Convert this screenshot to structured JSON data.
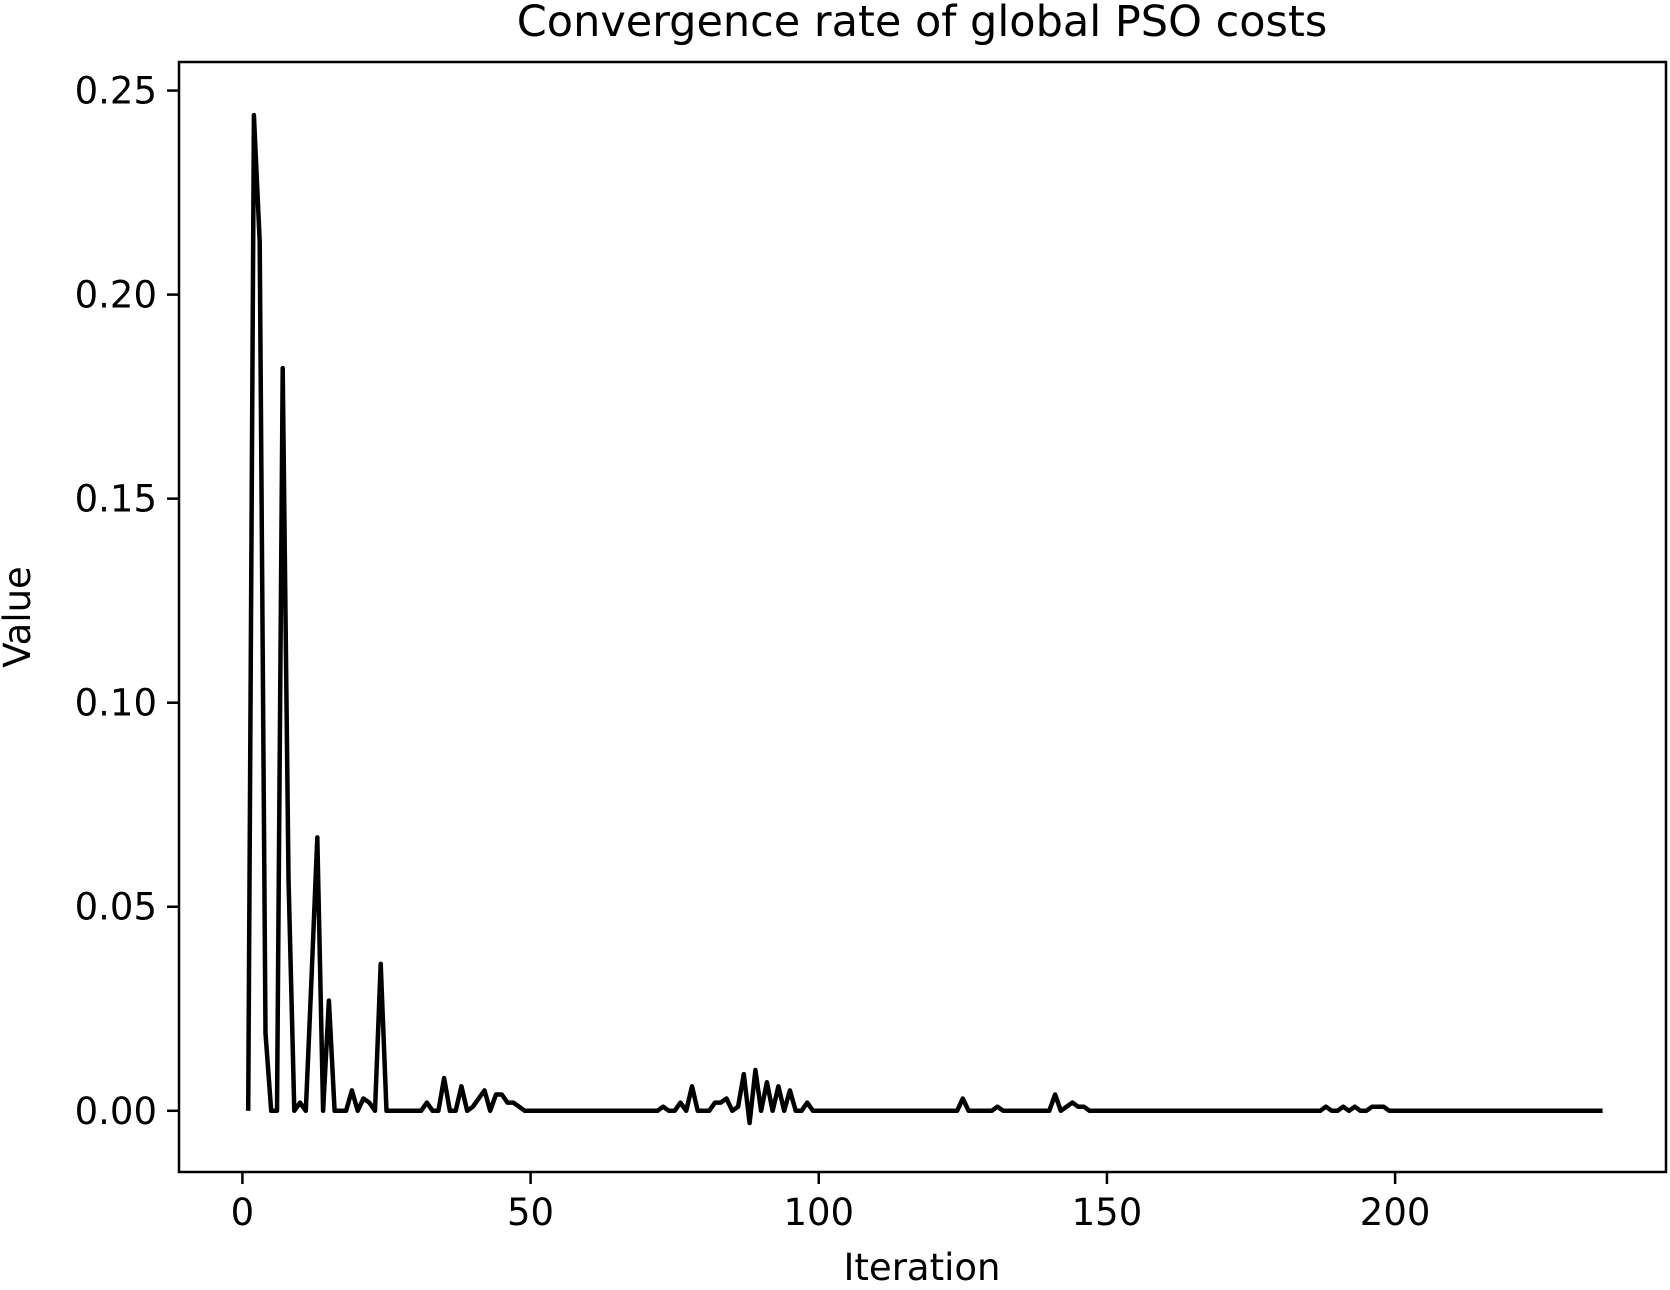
{
  "chart_data": {
    "type": "line",
    "title": "Convergence rate of global PSO costs",
    "xlabel": "Iteration",
    "ylabel": "Value",
    "xlim": [
      -11,
      247
    ],
    "ylim": [
      -0.015,
      0.257
    ],
    "xticks": [
      0,
      50,
      100,
      150,
      200
    ],
    "xtick_labels": [
      "0",
      "50",
      "100",
      "150",
      "200"
    ],
    "yticks": [
      0.0,
      0.05,
      0.1,
      0.15,
      0.2,
      0.25
    ],
    "ytick_labels": [
      "0.00",
      "0.05",
      "0.10",
      "0.15",
      "0.20",
      "0.25"
    ],
    "grid": false,
    "line_color": "#000000",
    "series": [
      {
        "x": [
          1,
          2,
          3,
          4,
          5,
          6,
          7,
          8,
          9,
          10,
          11,
          12,
          13,
          14,
          15,
          16,
          17,
          18,
          19,
          20,
          21,
          22,
          23,
          24,
          25,
          26,
          27,
          28,
          29,
          30,
          31,
          32,
          33,
          34,
          35,
          36,
          37,
          38,
          39,
          40,
          41,
          42,
          43,
          44,
          45,
          46,
          47,
          48,
          49,
          50,
          55,
          60,
          65,
          70,
          72,
          73,
          74,
          75,
          76,
          77,
          78,
          79,
          80,
          81,
          82,
          83,
          84,
          85,
          86,
          87,
          88,
          89,
          90,
          91,
          92,
          93,
          94,
          95,
          96,
          97,
          98,
          99,
          100,
          110,
          120,
          124,
          125,
          126,
          130,
          131,
          132,
          140,
          141,
          142,
          143,
          144,
          145,
          146,
          147,
          150,
          160,
          170,
          180,
          187,
          188,
          189,
          190,
          191,
          192,
          193,
          194,
          195,
          196,
          197,
          198,
          199,
          200,
          210,
          220,
          230,
          236
        ],
        "values": [
          0,
          0.244,
          0.213,
          0.019,
          0,
          0,
          0.182,
          0.057,
          0,
          0.002,
          0,
          0.033,
          0.067,
          0,
          0.027,
          0,
          0,
          0,
          0.005,
          0,
          0.003,
          0.002,
          0,
          0.036,
          0,
          0,
          0,
          0,
          0,
          0,
          0,
          0.002,
          0,
          0,
          0.008,
          0,
          0,
          0.006,
          0,
          0.001,
          0.003,
          0.005,
          0,
          0.004,
          0.004,
          0.002,
          0.002,
          0.001,
          0,
          0,
          0,
          0,
          0,
          0,
          0,
          0.001,
          0,
          0,
          0.002,
          0,
          0.006,
          0,
          0,
          0,
          0.002,
          0.002,
          0.003,
          0,
          0.001,
          0.009,
          -0.003,
          0.01,
          0,
          0.007,
          0,
          0.006,
          0,
          0.005,
          0,
          0,
          0.002,
          0,
          0,
          0,
          0,
          0,
          0.003,
          0,
          0,
          0.001,
          0,
          0,
          0.004,
          0,
          0.001,
          0.002,
          0.001,
          0.001,
          0,
          0,
          0,
          0,
          0,
          0,
          0.001,
          0,
          0,
          0.001,
          0,
          0.001,
          0,
          0,
          0.001,
          0.001,
          0.001,
          0,
          0,
          0,
          0,
          0,
          0
        ]
      }
    ]
  }
}
